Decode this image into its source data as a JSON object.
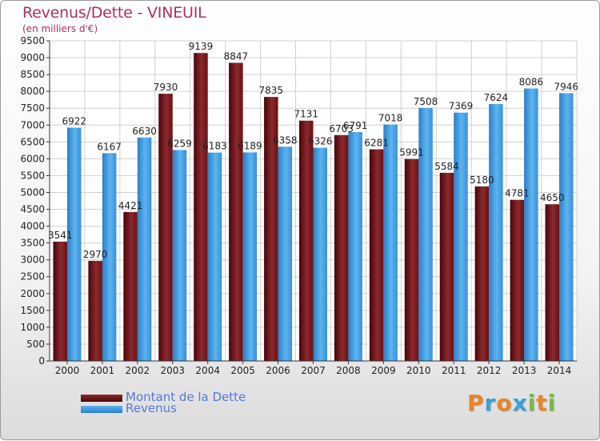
{
  "chart_data": {
    "type": "bar",
    "title": "Revenus/Dette - VINEUIL",
    "subtitle": "(en milliers d'€)",
    "categories": [
      "2000",
      "2001",
      "2002",
      "2003",
      "2004",
      "2005",
      "2006",
      "2007",
      "2008",
      "2009",
      "2010",
      "2011",
      "2012",
      "2013",
      "2014"
    ],
    "series": [
      {
        "name": "Montant de la Dette",
        "color": "#7a1a1e",
        "values": [
          3541,
          2970,
          4421,
          7930,
          9139,
          8847,
          7835,
          7131,
          6703,
          6281,
          5991,
          5584,
          5180,
          4781,
          4650
        ],
        "labels": [
          "3541",
          "2970",
          "4421",
          "7930",
          "9139",
          "8847",
          "7835",
          "7131",
          "6703",
          "6281",
          "5991",
          "5584",
          "5180",
          "4781",
          "4650"
        ]
      },
      {
        "name": "Revenus",
        "color": "#4aa3e8",
        "values": [
          6922,
          6167,
          6630,
          6259,
          6183,
          6189,
          6358,
          6326,
          6791,
          7018,
          7508,
          7369,
          7624,
          8086,
          7946
        ],
        "labels": [
          "6922",
          "6167",
          "6630",
          "6259",
          "6183",
          "6189",
          "6358",
          "6326",
          "6791",
          "7018",
          "7508",
          "7369",
          "7624",
          "8086",
          "7946"
        ]
      }
    ],
    "yticks": [
      0,
      500,
      1000,
      1500,
      2000,
      2500,
      3000,
      3500,
      4000,
      4500,
      5000,
      5500,
      6000,
      6500,
      7000,
      7500,
      8000,
      8500,
      9000,
      9500
    ],
    "ylim": [
      0,
      9500
    ],
    "grid": true,
    "legend_position": "bottom-left"
  },
  "legend": {
    "debt_label": "Montant de la Dette",
    "revenue_label": "Revenus"
  },
  "logo": {
    "letters": [
      "P",
      "r",
      "o",
      "x",
      "i",
      "t",
      "i"
    ],
    "colors": [
      "#e8852a",
      "#3aa0d8",
      "#e8852a",
      "#3aa0d8",
      "#7ab648",
      "#e8852a",
      "#7ab648"
    ]
  }
}
